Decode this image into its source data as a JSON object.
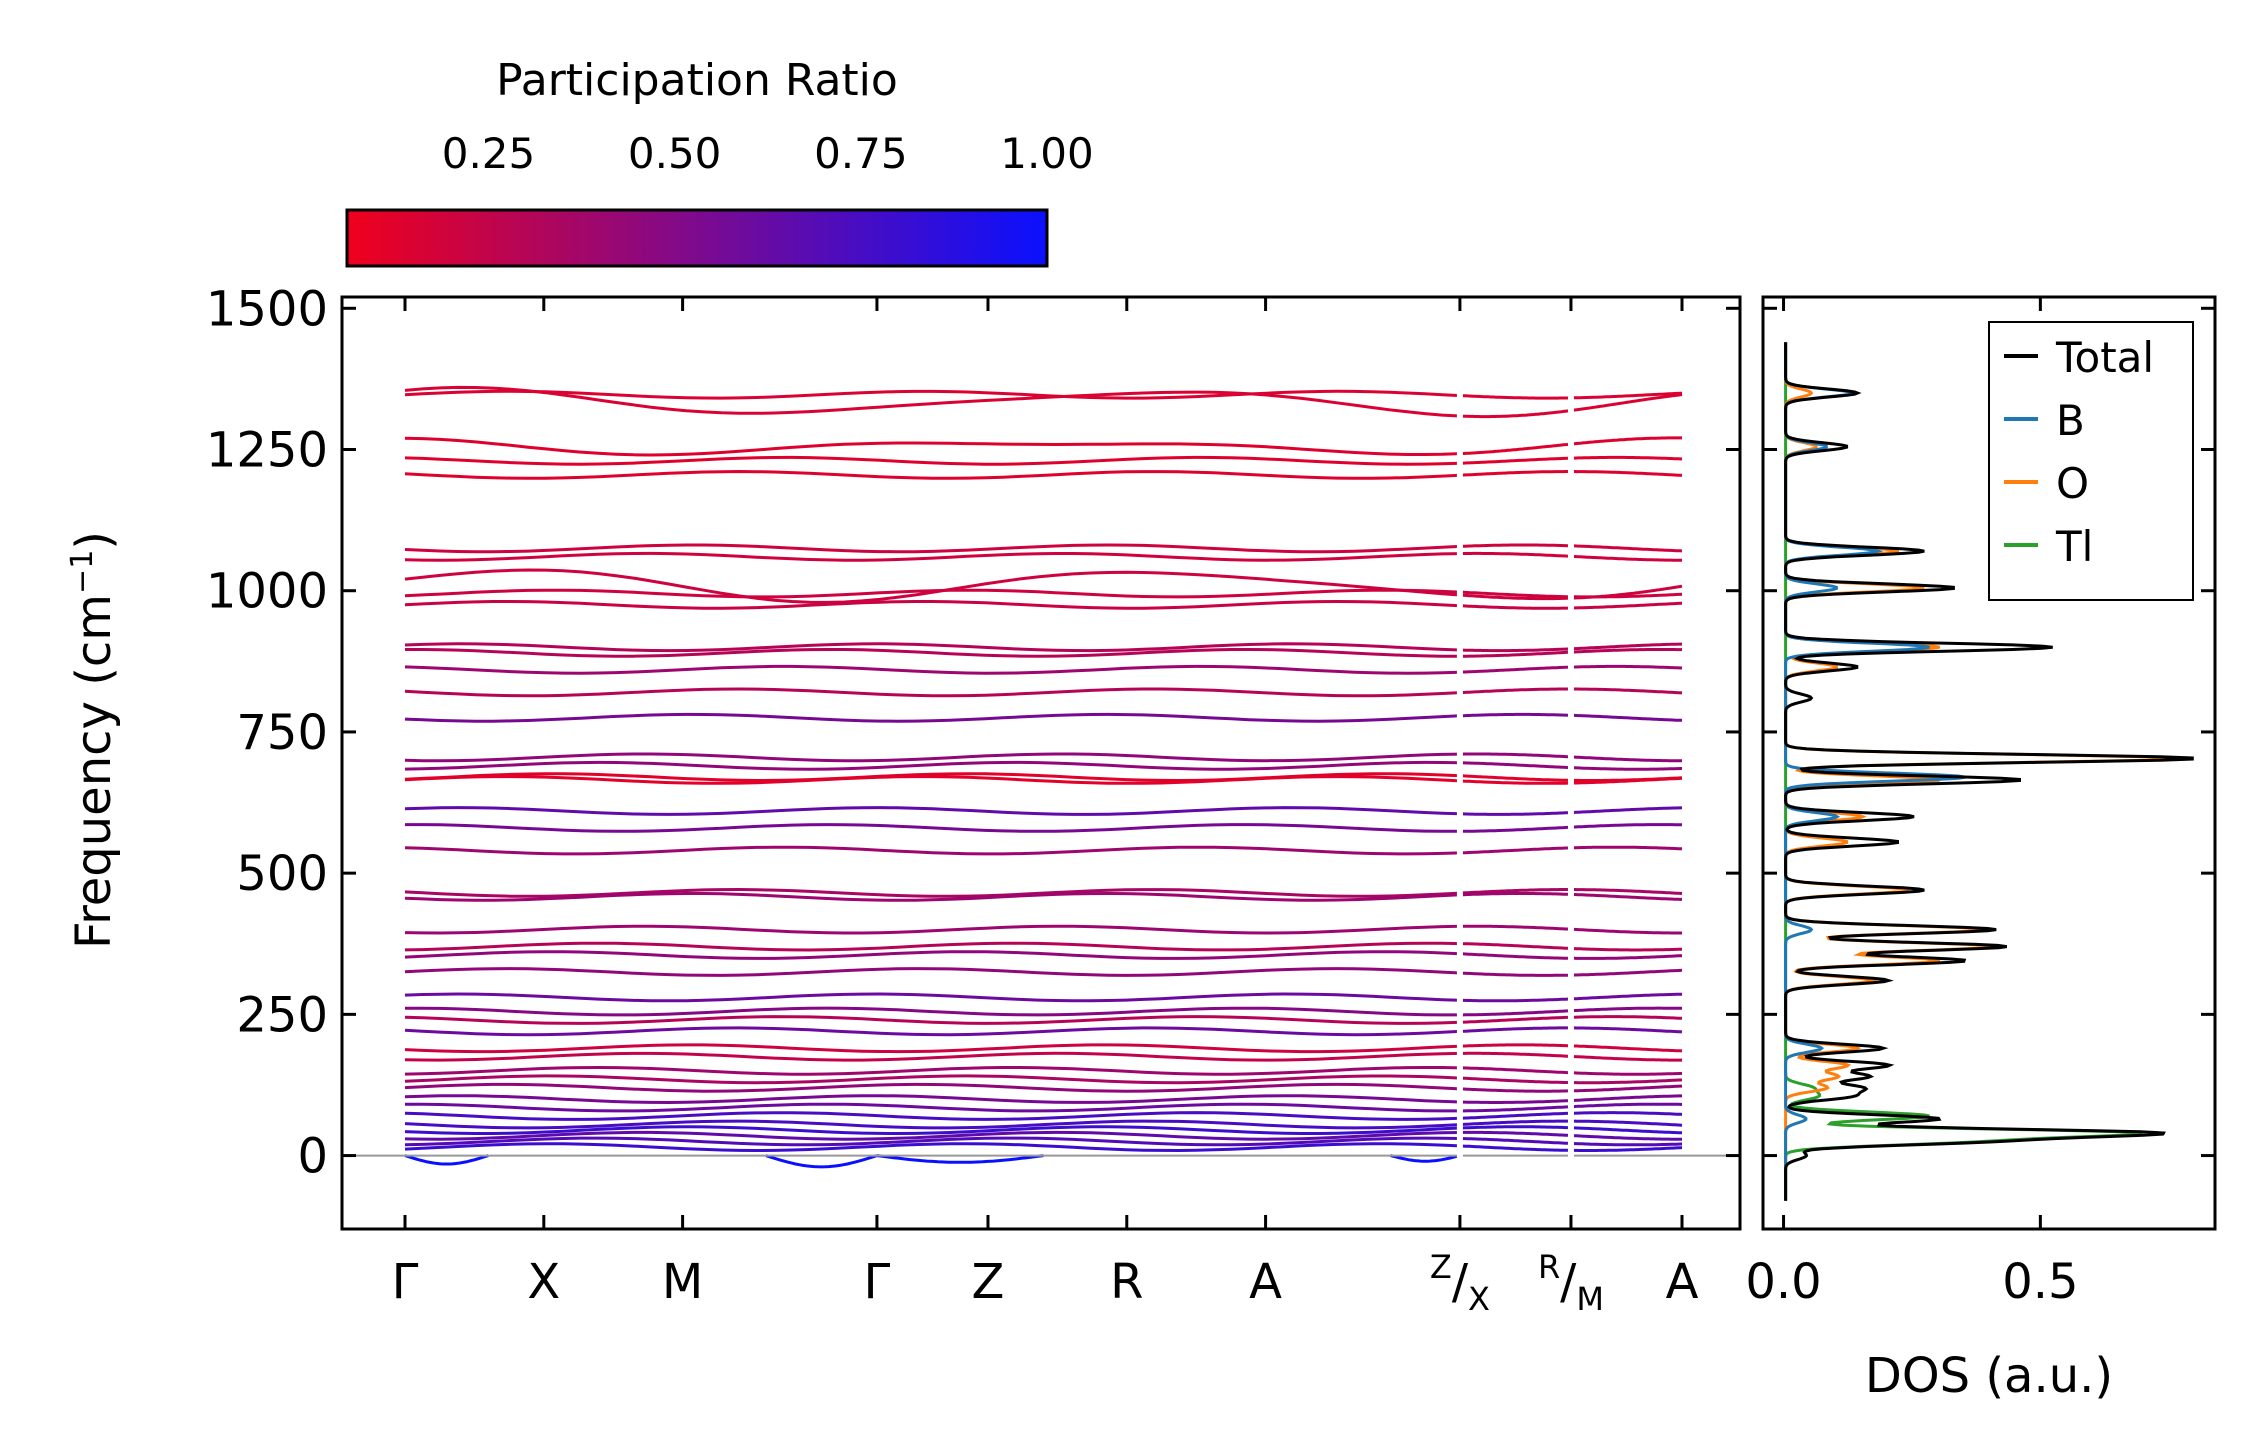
{
  "chart_data": [
    {
      "type": "line",
      "name": "phonon-band-structure",
      "ylabel_main": "Frequency (cm",
      "ylabel_sup": "−1",
      "ylabel_close": ")",
      "ylim": [
        -130,
        1520
      ],
      "y_ticks": [
        "1500",
        "1250",
        "1000",
        "750",
        "500",
        "250",
        "0"
      ],
      "y_tick_values": [
        1500,
        1250,
        1000,
        750,
        500,
        250,
        0
      ],
      "k_labels": [
        "Γ",
        "X",
        "M",
        "Γ",
        "Z",
        "R",
        "A",
        "A"
      ],
      "k_label_positions": [
        0,
        1,
        2,
        3.4,
        4.2,
        5.2,
        6.2,
        9.2
      ],
      "split_labels": [
        {
          "pre": "Z",
          "slash": "/",
          "post": "X",
          "at": 7.6
        },
        {
          "pre": "R",
          "slash": "/",
          "post": "M",
          "at": 8.4
        }
      ],
      "x_range": [
        0,
        9.2
      ],
      "segment_breaks": [
        7.6,
        8.4
      ],
      "colorbar": {
        "title": "Participation Ratio",
        "ticks": [
          "0.25",
          "0.50",
          "0.75",
          "1.00"
        ],
        "tick_values": [
          0.25,
          0.5,
          0.75,
          1.0
        ],
        "range": [
          0.06,
          1.0
        ],
        "low_color": "#f0001c",
        "high_color": "#0a10ff"
      },
      "bands": [
        {
          "f": 1347,
          "pr": 0.15
        },
        {
          "f": 1334,
          "pr": 0.15,
          "wiggle": 20
        },
        {
          "f": 1255,
          "pr": 0.13,
          "wiggle": 10
        },
        {
          "f": 1230,
          "pr": 0.13
        },
        {
          "f": 1205,
          "pr": 0.13
        },
        {
          "f": 1075,
          "pr": 0.2
        },
        {
          "f": 1060,
          "pr": 0.2
        },
        {
          "f": 1010,
          "pr": 0.2,
          "wiggle": 25
        },
        {
          "f": 995,
          "pr": 0.2
        },
        {
          "f": 975,
          "pr": 0.22
        },
        {
          "f": 900,
          "pr": 0.3
        },
        {
          "f": 890,
          "pr": 0.3
        },
        {
          "f": 860,
          "pr": 0.4
        },
        {
          "f": 820,
          "pr": 0.3
        },
        {
          "f": 775,
          "pr": 0.55
        },
        {
          "f": 705,
          "pr": 0.45
        },
        {
          "f": 690,
          "pr": 0.45
        },
        {
          "f": 670,
          "pr": 0.12
        },
        {
          "f": 665,
          "pr": 0.12
        },
        {
          "f": 610,
          "pr": 0.65
        },
        {
          "f": 580,
          "pr": 0.55
        },
        {
          "f": 540,
          "pr": 0.4
        },
        {
          "f": 465,
          "pr": 0.35
        },
        {
          "f": 458,
          "pr": 0.4
        },
        {
          "f": 400,
          "pr": 0.4
        },
        {
          "f": 370,
          "pr": 0.3
        },
        {
          "f": 355,
          "pr": 0.45
        },
        {
          "f": 325,
          "pr": 0.45
        },
        {
          "f": 280,
          "pr": 0.6
        },
        {
          "f": 255,
          "pr": 0.5
        },
        {
          "f": 240,
          "pr": 0.3
        },
        {
          "f": 220,
          "pr": 0.6
        },
        {
          "f": 190,
          "pr": 0.2
        },
        {
          "f": 175,
          "pr": 0.25
        },
        {
          "f": 150,
          "pr": 0.4
        },
        {
          "f": 135,
          "pr": 0.35
        },
        {
          "f": 120,
          "pr": 0.45
        },
        {
          "f": 100,
          "pr": 0.55
        },
        {
          "f": 85,
          "pr": 0.6
        },
        {
          "f": 70,
          "pr": 0.75
        },
        {
          "f": 55,
          "pr": 0.75
        },
        {
          "f": 45,
          "pr": 0.8
        },
        {
          "f": 35,
          "pr": 0.65
        },
        {
          "f": 25,
          "pr": 0.7
        },
        {
          "f": 15,
          "pr": 0.8
        }
      ],
      "negative_modes": [
        {
          "from": 0.0,
          "to": 0.6,
          "min": -15
        },
        {
          "from": 2.6,
          "to": 3.4,
          "min": -20
        },
        {
          "from": 3.4,
          "to": 4.6,
          "min": -12
        },
        {
          "from": 7.1,
          "to": 7.6,
          "min": -10
        }
      ]
    },
    {
      "type": "line",
      "name": "dos",
      "xlabel": "DOS (a.u.)",
      "x_ticks": [
        "0.0",
        "0.5"
      ],
      "x_tick_values": [
        0,
        0.5
      ],
      "xlim": [
        -0.04,
        0.84
      ],
      "ylim": [
        -130,
        1520
      ],
      "series": [
        {
          "name": "Total",
          "color": "#000000",
          "x": [
            1350,
            1255,
            1070,
            1005,
            900,
            865,
            810,
            703,
            665,
            600,
            555,
            470,
            400,
            370,
            345,
            310,
            190,
            160,
            140,
            120,
            105,
            65,
            40,
            25,
            0
          ],
          "y": [
            0.14,
            0.12,
            0.27,
            0.33,
            0.52,
            0.14,
            0.05,
            0.8,
            0.46,
            0.25,
            0.22,
            0.27,
            0.41,
            0.43,
            0.35,
            0.2,
            0.19,
            0.2,
            0.16,
            0.14,
            0.12,
            0.3,
            0.7,
            0.35,
            0.04
          ]
        },
        {
          "name": "B",
          "color": "#1f77b4",
          "x": [
            1350,
            1255,
            1070,
            1005,
            900,
            670,
            600,
            400,
            190,
            65
          ],
          "y": [
            0.13,
            0.08,
            0.18,
            0.1,
            0.28,
            0.35,
            0.1,
            0.05,
            0.07,
            0.04
          ]
        },
        {
          "name": "O",
          "color": "#ff7f0e",
          "x": [
            1350,
            1255,
            1070,
            1005,
            900,
            865,
            703,
            665,
            600,
            555,
            470,
            400,
            370,
            345,
            310,
            190,
            160,
            140,
            120
          ],
          "y": [
            0.05,
            0.06,
            0.22,
            0.27,
            0.3,
            0.1,
            0.77,
            0.3,
            0.15,
            0.12,
            0.24,
            0.39,
            0.41,
            0.3,
            0.17,
            0.14,
            0.12,
            0.1,
            0.08
          ]
        },
        {
          "name": "Tl",
          "color": "#2ca02c",
          "x": [
            120,
            105,
            70,
            40,
            25
          ],
          "y": [
            0.05,
            0.06,
            0.28,
            0.66,
            0.32
          ]
        }
      ],
      "legend": {
        "placement": "top-right",
        "entries": [
          "Total",
          "B",
          "O",
          "Tl"
        ]
      }
    }
  ]
}
